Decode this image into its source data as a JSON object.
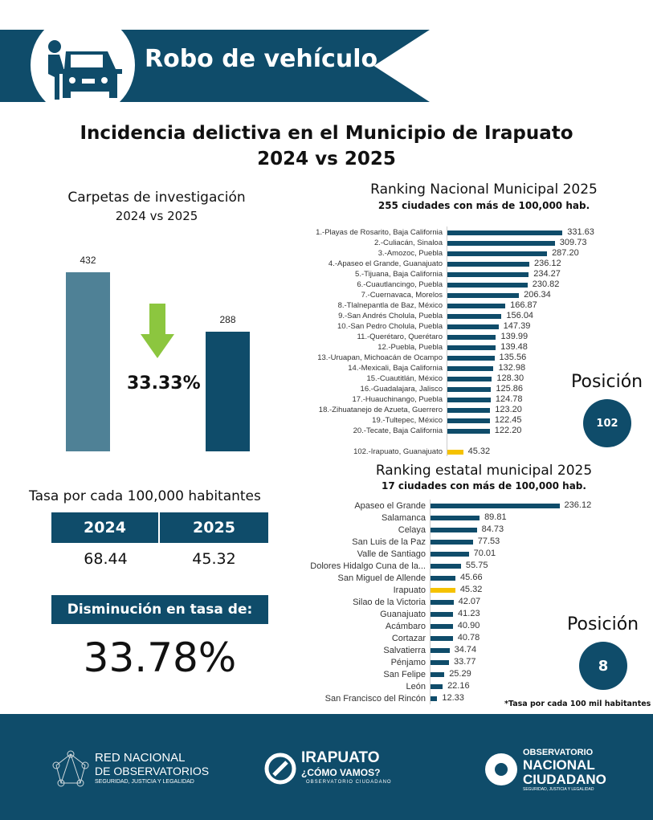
{
  "banner": {
    "title": "Robo de vehículo",
    "icon": "car-thief-icon"
  },
  "main_title": {
    "line1": "Incidencia delictiva en el Municipio de Irapuato",
    "line2": "2024 vs 2025"
  },
  "colors": {
    "primary": "#0f4c6a",
    "bar_2024": "#4f8196",
    "highlight": "#f5c200",
    "arrow": "#8cc63f"
  },
  "chart_data": [
    {
      "type": "bar",
      "title": "Carpetas de investigación",
      "subtitle": "2024 vs 2025",
      "categories": [
        "2024",
        "2025"
      ],
      "values": [
        432,
        288
      ],
      "change_label": "33.33%",
      "change_icon": "down-arrow-icon"
    },
    {
      "type": "bar",
      "orientation": "horizontal",
      "title": "Ranking Nacional Municipal 2025",
      "subtitle": "255 ciudades con más de 100,000 hab.",
      "categories": [
        "1.-Playas de Rosarito, Baja California",
        "2.-Culiacán, Sinaloa",
        "3.-Amozoc, Puebla",
        "4.-Apaseo el Grande, Guanajuato",
        "5.-Tijuana, Baja California",
        "6.-Cuautlancingo, Puebla",
        "7.-Cuernavaca, Morelos",
        "8.-Tlalnepantla de Baz, México",
        "9.-San Andrés Cholula, Puebla",
        "10.-San Pedro Cholula, Puebla",
        "11.-Querétaro, Querétaro",
        "12.-Puebla, Puebla",
        "13.-Uruapan, Michoacán de Ocampo",
        "14.-Mexicali, Baja California",
        "15.-Cuautitlán, México",
        "16.-Guadalajara, Jalisco",
        "17.-Huauchinango, Puebla",
        "18.-Zihuatanejo de Azueta, Guerrero",
        "19.-Tultepec, México",
        "20.-Tecate, Baja California",
        "102.-Irapuato, Guanajuato"
      ],
      "values": [
        331.63,
        309.73,
        287.2,
        236.12,
        234.27,
        230.82,
        206.34,
        166.87,
        156.04,
        147.39,
        139.99,
        139.48,
        135.56,
        132.98,
        128.3,
        125.86,
        124.78,
        123.2,
        122.45,
        122.2,
        45.32
      ],
      "value_labels": [
        "331.63",
        "309.73",
        "287.20",
        "236.12",
        "234.27",
        "230.82",
        "206.34",
        "166.87",
        "156.04",
        "147.39",
        "139.99",
        "139.48",
        "135.56",
        "132.98",
        "128.30",
        "125.86",
        "124.78",
        "123.20",
        "122.45",
        "122.20",
        "45.32"
      ],
      "highlight": "102.-Irapuato, Guanajuato",
      "position_label": "Posición",
      "position": "102"
    },
    {
      "type": "bar",
      "orientation": "horizontal",
      "title": "Ranking estatal municipal 2025",
      "subtitle": "17 ciudades con más de 100,000 hab.",
      "categories": [
        "Apaseo el Grande",
        "Salamanca",
        "Celaya",
        "San Luis de la Paz",
        "Valle de Santiago",
        "Dolores Hidalgo Cuna de la...",
        "San Miguel de Allende",
        "Irapuato",
        "Silao de la Victoria",
        "Guanajuato",
        "Acámbaro",
        "Cortazar",
        "Salvatierra",
        "Pénjamo",
        "San Felipe",
        "León",
        "San Francisco del Rincón"
      ],
      "values": [
        236.12,
        89.81,
        84.73,
        77.53,
        70.01,
        55.75,
        45.66,
        45.32,
        42.07,
        41.23,
        40.9,
        40.78,
        34.74,
        33.77,
        25.29,
        22.16,
        12.33
      ],
      "value_labels": [
        "236.12",
        "89.81",
        "84.73",
        "77.53",
        "70.01",
        "55.75",
        "45.66",
        "45.32",
        "42.07",
        "41.23",
        "40.90",
        "40.78",
        "34.74",
        "33.77",
        "25.29",
        "22.16",
        "12.33"
      ],
      "highlight": "Irapuato",
      "position_label": "Posición",
      "position": "8",
      "footnote": "*Tasa por cada 100 mil habitantes"
    }
  ],
  "rate": {
    "title": "Tasa por cada 100,000 habitantes",
    "headers": [
      "2024",
      "2025"
    ],
    "values": [
      "68.44",
      "45.32"
    ],
    "decrease_label": "Disminución en tasa de:",
    "decrease_value": "33.78%"
  },
  "footer": {
    "logos": [
      {
        "line1": "RED NACIONAL",
        "line2": "DE OBSERVATORIOS",
        "line3": "SEGURIDAD, JUSTICIA Y LEGALIDAD"
      },
      {
        "line1": "IRAPUATO",
        "line2": "¿CÓMO VAMOS?",
        "line3": "OBSERVATORIO CIUDADANO"
      },
      {
        "line1": "OBSERVATORIO",
        "line2": "NACIONAL",
        "line3": "CIUDADANO",
        "line4": "SEGURIDAD, JUSTICIA Y LEGALIDAD"
      }
    ]
  }
}
